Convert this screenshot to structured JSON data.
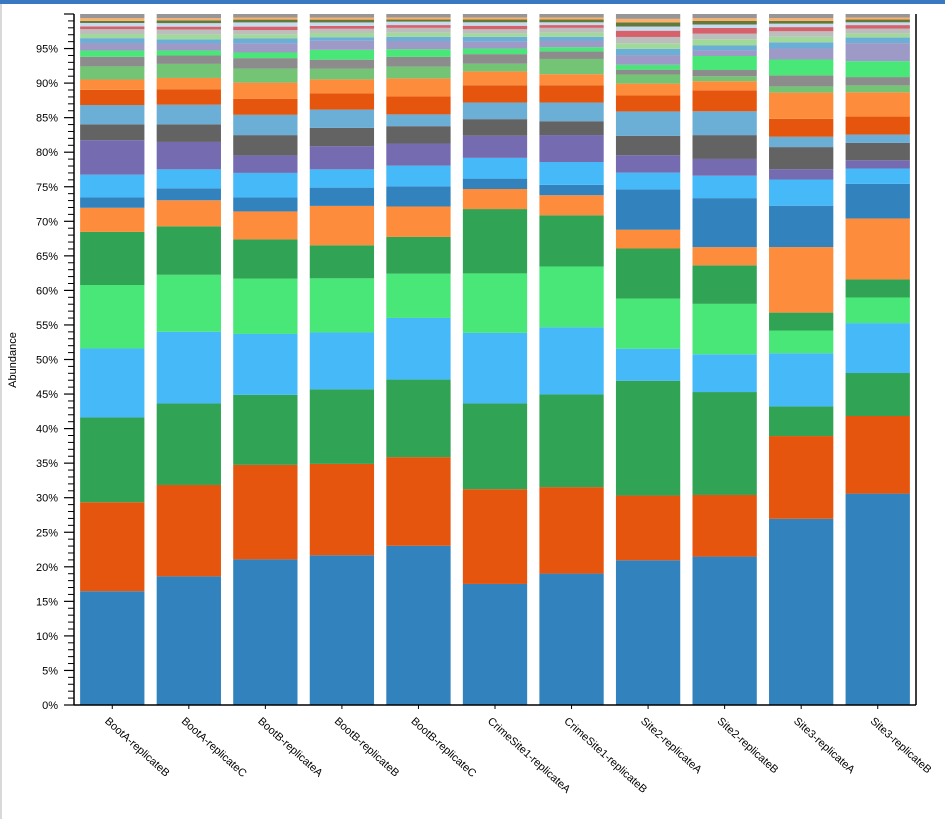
{
  "chart_data": {
    "type": "bar",
    "stacked": true,
    "normalized": true,
    "ylabel": "Abundance",
    "ylim": [
      0,
      100
    ],
    "y_ticks": [
      "0%",
      "5%",
      "10%",
      "15%",
      "20%",
      "25%",
      "30%",
      "35%",
      "40%",
      "45%",
      "50%",
      "55%",
      "60%",
      "65%",
      "70%",
      "75%",
      "80%",
      "85%",
      "90%",
      "95%"
    ],
    "categories": [
      "BootA-replicateB",
      "BootA-replicateC",
      "BootB-replicateA",
      "BootB-replicateB",
      "BootB-replicateC",
      "CrimeSite1-replicateA",
      "CrimeSite1-replicateB",
      "Site2-replicateA",
      "Site2-replicateB",
      "Site3-replicateA",
      "Site3-replicateB"
    ],
    "grid": false,
    "legend": "none",
    "series": [
      {
        "color": "#3182bd",
        "values": [
          16.5,
          18.3,
          20.8,
          21.3,
          23.0,
          17.5,
          19.0,
          20.8,
          21.2,
          27.0,
          30.5
        ]
      },
      {
        "color": "#e6550d",
        "values": [
          12.9,
          13.0,
          13.5,
          13.0,
          12.8,
          13.7,
          12.5,
          9.3,
          8.8,
          12.0,
          11.2
        ]
      },
      {
        "color": "#31a354",
        "values": [
          12.3,
          11.6,
          10.0,
          10.6,
          11.2,
          12.4,
          13.4,
          16.5,
          14.7,
          4.3,
          6.2
        ]
      },
      {
        "color": "#46b9f8",
        "values": [
          10.0,
          10.2,
          8.7,
          8.1,
          8.9,
          10.2,
          9.7,
          4.6,
          5.4,
          7.7,
          7.2
        ]
      },
      {
        "color": "#48e778",
        "values": [
          9.2,
          8.1,
          7.9,
          7.7,
          6.4,
          8.6,
          8.8,
          7.2,
          7.2,
          3.3,
          3.7
        ]
      },
      {
        "color": "#31a354",
        "values": [
          7.7,
          6.9,
          5.6,
          4.7,
          5.3,
          9.3,
          7.4,
          7.2,
          5.5,
          2.6,
          2.6
        ]
      },
      {
        "color": "#fd8d3c",
        "values": [
          3.5,
          3.7,
          4.0,
          5.6,
          4.4,
          2.9,
          2.9,
          2.7,
          2.6,
          9.5,
          8.8
        ]
      },
      {
        "color": "#3182bd",
        "values": [
          1.5,
          1.7,
          2.0,
          2.6,
          2.9,
          1.5,
          1.5,
          5.8,
          7.0,
          6.0,
          5.0
        ]
      },
      {
        "color": "#46b9f8",
        "values": [
          3.3,
          2.7,
          3.5,
          2.6,
          3.0,
          3.0,
          3.3,
          2.4,
          3.2,
          3.8,
          2.2
        ]
      },
      {
        "color": "#756bb1",
        "values": [
          5.0,
          3.9,
          2.5,
          3.3,
          3.2,
          3.2,
          3.9,
          2.5,
          2.4,
          1.5,
          1.2
        ]
      },
      {
        "color": "#636363",
        "values": [
          2.3,
          2.5,
          2.9,
          2.6,
          2.5,
          2.4,
          2.0,
          2.8,
          3.4,
          3.2,
          2.5
        ]
      },
      {
        "color": "#6baed6",
        "values": [
          2.8,
          2.8,
          2.9,
          2.6,
          1.7,
          2.4,
          2.7,
          3.5,
          3.4,
          1.5,
          1.2
        ]
      },
      {
        "color": "#e6550d",
        "values": [
          2.2,
          2.2,
          2.3,
          2.3,
          2.6,
          2.5,
          2.5,
          2.3,
          3.0,
          2.6,
          2.6
        ]
      },
      {
        "color": "#fd8d3c",
        "values": [
          1.5,
          1.6,
          2.3,
          2.0,
          2.6,
          2.0,
          1.6,
          1.7,
          1.3,
          3.8,
          3.5
        ]
      },
      {
        "color": "#74c476",
        "values": [
          1.9,
          2.0,
          2.0,
          1.5,
          1.7,
          1.1,
          2.2,
          1.3,
          0.7,
          0.9,
          1.0
        ]
      },
      {
        "color": "#8c8c8c",
        "values": [
          1.4,
          1.2,
          1.5,
          1.3,
          1.4,
          1.4,
          1.1,
          0.7,
          0.9,
          1.6,
          1.2
        ]
      },
      {
        "color": "#48e778",
        "values": [
          0.9,
          0.7,
          0.8,
          1.4,
          1.1,
          0.8,
          0.6,
          0.7,
          2.0,
          2.3,
          2.3
        ]
      },
      {
        "color": "#9e9ac8",
        "values": [
          1.1,
          1.0,
          1.3,
          1.3,
          1.2,
          1.0,
          0.9,
          1.4,
          0.8,
          1.6,
          2.6
        ]
      },
      {
        "color": "#6baed6",
        "values": [
          0.7,
          0.6,
          0.7,
          0.5,
          0.6,
          0.7,
          0.6,
          0.9,
          0.7,
          0.9,
          0.8
        ]
      },
      {
        "color": "#a1d99b",
        "values": [
          0.6,
          0.7,
          0.6,
          0.6,
          0.6,
          0.5,
          0.6,
          0.8,
          0.9,
          0.8,
          0.6
        ]
      },
      {
        "color": "#bdbdbd",
        "values": [
          0.7,
          0.7,
          0.6,
          0.6,
          0.7,
          0.6,
          0.7,
          0.9,
          0.8,
          0.8,
          0.7
        ]
      },
      {
        "color": "#d6616b",
        "values": [
          0.4,
          0.4,
          0.5,
          0.4,
          0.4,
          0.5,
          0.4,
          0.9,
          0.8,
          0.6,
          0.5
        ]
      },
      {
        "color": "#c6dbef",
        "values": [
          0.5,
          0.5,
          0.6,
          0.5,
          0.5,
          0.5,
          0.4,
          0.6,
          0.5,
          0.5,
          0.4
        ]
      },
      {
        "color": "#637939",
        "values": [
          0.3,
          0.4,
          0.4,
          0.4,
          0.3,
          0.4,
          0.4,
          0.6,
          0.5,
          0.4,
          0.4
        ]
      },
      {
        "color": "#fdae6b",
        "values": [
          0.4,
          0.3,
          0.3,
          0.3,
          0.3,
          0.3,
          0.3,
          0.5,
          0.4,
          0.4,
          0.3
        ]
      },
      {
        "color": "#969696",
        "values": [
          0.6,
          0.6,
          0.5,
          0.5,
          0.5,
          0.5,
          0.5,
          0.7,
          0.6,
          0.6,
          0.5
        ]
      }
    ]
  }
}
